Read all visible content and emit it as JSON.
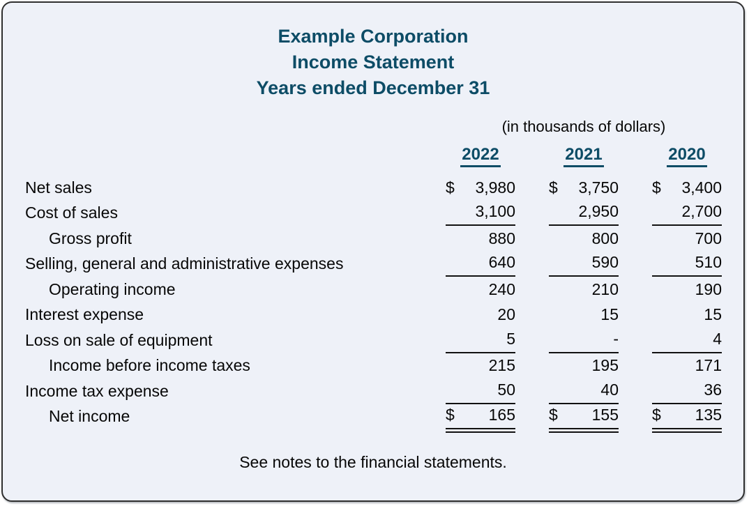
{
  "header": {
    "title_line1": "Example Corporation",
    "title_line2": "Income Statement",
    "title_line3": "Years ended December 31",
    "units_note": "(in thousands of dollars)"
  },
  "table": {
    "currency_symbol": "$",
    "year_columns": [
      "2022",
      "2021",
      "2020"
    ],
    "rows": [
      {
        "label": "Net sales",
        "indent": false,
        "dollar_sign": true,
        "rule": "none",
        "values": [
          "3,980",
          "3,750",
          "3,400"
        ]
      },
      {
        "label": "Cost of sales",
        "indent": false,
        "dollar_sign": false,
        "rule": "single",
        "values": [
          "3,100",
          "2,950",
          "2,700"
        ]
      },
      {
        "label": "Gross profit",
        "indent": true,
        "dollar_sign": false,
        "rule": "none",
        "values": [
          "880",
          "800",
          "700"
        ]
      },
      {
        "label": "Selling, general and administrative expenses",
        "indent": false,
        "dollar_sign": false,
        "rule": "single",
        "values": [
          "640",
          "590",
          "510"
        ]
      },
      {
        "label": "Operating income",
        "indent": true,
        "dollar_sign": false,
        "rule": "none",
        "values": [
          "240",
          "210",
          "190"
        ]
      },
      {
        "label": "Interest expense",
        "indent": false,
        "dollar_sign": false,
        "rule": "none",
        "values": [
          "20",
          "15",
          "15"
        ]
      },
      {
        "label": "Loss on sale of equipment",
        "indent": false,
        "dollar_sign": false,
        "rule": "single",
        "values": [
          "5",
          "-",
          "4"
        ]
      },
      {
        "label": "Income before income taxes",
        "indent": true,
        "dollar_sign": false,
        "rule": "none",
        "values": [
          "215",
          "195",
          "171"
        ]
      },
      {
        "label": "Income tax expense",
        "indent": false,
        "dollar_sign": false,
        "rule": "single",
        "values": [
          "50",
          "40",
          "36"
        ]
      },
      {
        "label": "Net income",
        "indent": true,
        "dollar_sign": true,
        "rule": "double",
        "values": [
          "165",
          "155",
          "135"
        ]
      }
    ]
  },
  "footer": {
    "note": "See notes to the financial statements."
  },
  "colors": {
    "accent": "#0d4c66",
    "background": "#eef1f8",
    "text": "#070707",
    "border": "#2f2f2f",
    "rule": "#111111"
  }
}
